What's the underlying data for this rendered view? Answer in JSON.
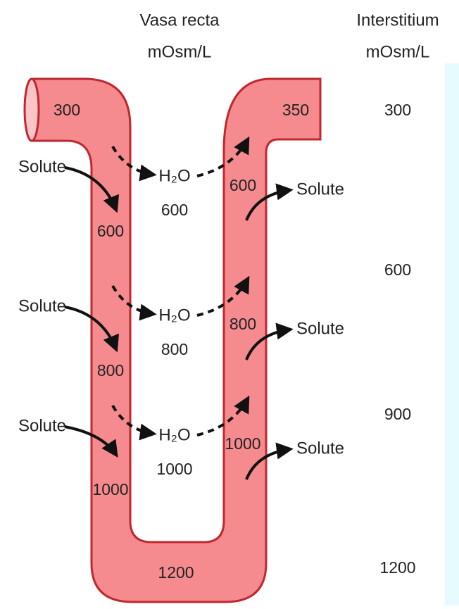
{
  "headers": {
    "vasa_recta": {
      "title": "Vasa recta",
      "unit": "mOsm/L"
    },
    "interstitium": {
      "title": "Interstitium",
      "unit": "mOsm/L"
    }
  },
  "vessel": {
    "descending": [
      "300",
      "600",
      "800",
      "1000"
    ],
    "bottom": "1200",
    "ascending": [
      "350",
      "600",
      "800",
      "1000"
    ]
  },
  "exchange": [
    {
      "water": "H₂O",
      "value": "600",
      "solute_in": "Solute",
      "solute_out": "Solute"
    },
    {
      "water": "H₂O",
      "value": "800",
      "solute_in": "Solute",
      "solute_out": "Solute"
    },
    {
      "water": "H₂O",
      "value": "1000",
      "solute_in": "Solute",
      "solute_out": "Solute"
    }
  ],
  "interstitium": [
    "300",
    "600",
    "900",
    "1200"
  ]
}
